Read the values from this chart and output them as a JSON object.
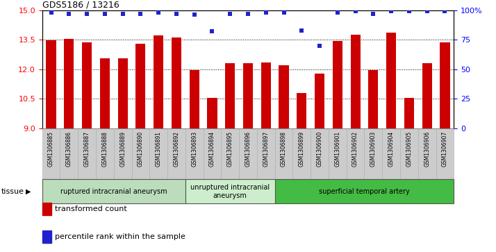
{
  "title": "GDS5186 / 13216",
  "samples": [
    "GSM1306885",
    "GSM1306886",
    "GSM1306887",
    "GSM1306888",
    "GSM1306889",
    "GSM1306890",
    "GSM1306891",
    "GSM1306892",
    "GSM1306893",
    "GSM1306894",
    "GSM1306895",
    "GSM1306896",
    "GSM1306897",
    "GSM1306898",
    "GSM1306899",
    "GSM1306900",
    "GSM1306901",
    "GSM1306902",
    "GSM1306903",
    "GSM1306904",
    "GSM1306905",
    "GSM1306906",
    "GSM1306907"
  ],
  "transformed_count": [
    13.48,
    13.55,
    13.35,
    12.55,
    12.55,
    13.3,
    13.72,
    13.62,
    11.95,
    10.55,
    12.32,
    12.32,
    12.35,
    12.2,
    10.8,
    11.78,
    13.45,
    13.75,
    11.95,
    13.85,
    10.55,
    12.3,
    13.35
  ],
  "percentile_rank": [
    98,
    97,
    97,
    97,
    97,
    97,
    98,
    97,
    96,
    82,
    97,
    97,
    98,
    98,
    83,
    70,
    98,
    99,
    97,
    99,
    99,
    99,
    99
  ],
  "ylim_left": [
    9,
    15
  ],
  "ylim_right": [
    0,
    100
  ],
  "yticks_left": [
    9,
    10.5,
    12,
    13.5,
    15
  ],
  "yticks_right": [
    0,
    25,
    50,
    75,
    100
  ],
  "bar_color": "#CC0000",
  "dot_color": "#2222CC",
  "groups": [
    {
      "label": "ruptured intracranial aneurysm",
      "start": 0,
      "end": 7,
      "color": "#bbddbb"
    },
    {
      "label": "unruptured intracranial\naneurysm",
      "start": 8,
      "end": 12,
      "color": "#cceecc"
    },
    {
      "label": "superficial temporal artery",
      "start": 13,
      "end": 22,
      "color": "#44bb44"
    }
  ],
  "tissue_label": "tissue",
  "legend_items": [
    {
      "label": "transformed count",
      "color": "#CC0000"
    },
    {
      "label": "percentile rank within the sample",
      "color": "#2222CC"
    }
  ],
  "background_color": "#ffffff",
  "plot_bg_color": "#ffffff",
  "tick_area_color": "#cccccc"
}
